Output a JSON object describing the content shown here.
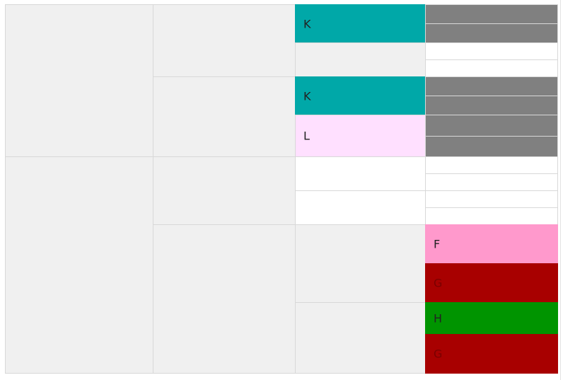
{
  "pedigree": {
    "c3_row1": {
      "letter": "K",
      "color": "#00a8a8"
    },
    "c3_row3": {
      "letter": "K",
      "color": "#00a8a8"
    },
    "c3_row4": {
      "letter": "L",
      "color": "#ffe0ff"
    },
    "c4_row9": {
      "letter": "F",
      "color": "#ff99cc"
    },
    "c4_row10": {
      "letter": "G",
      "color": "#a80000"
    },
    "c4_row11": {
      "letter": "H",
      "color": "#009400"
    },
    "c4_row12": {
      "letter": "G",
      "color": "#a80000"
    }
  },
  "colors": {
    "empty": "#f0f0f0",
    "blank": "#ffffff",
    "unknown": "#808080"
  }
}
